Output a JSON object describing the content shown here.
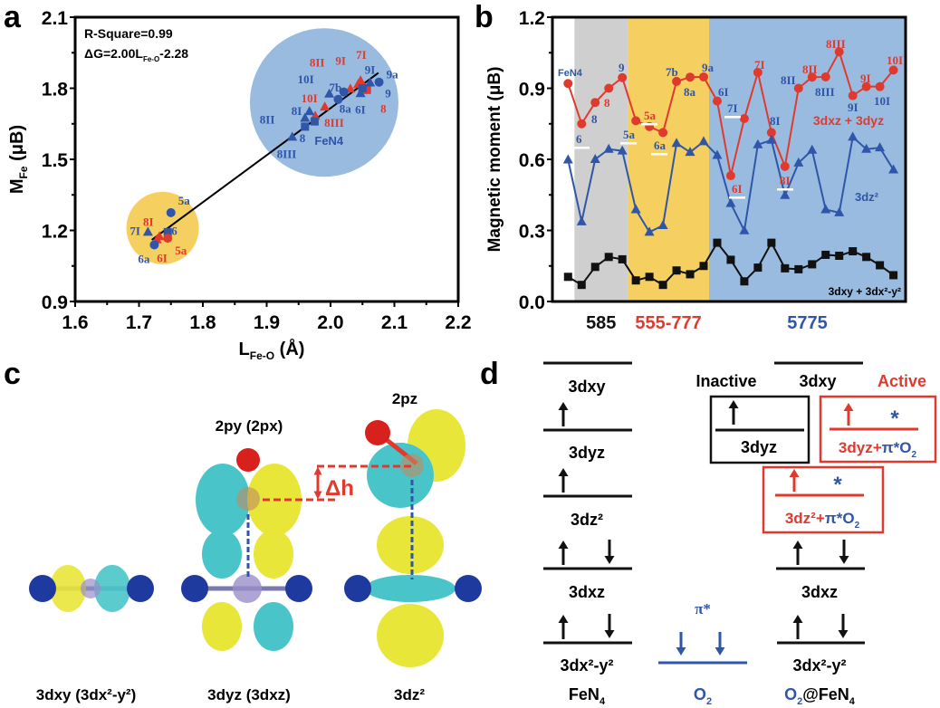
{
  "panels": {
    "a": "a",
    "b": "b",
    "c": "c",
    "d": "d"
  },
  "colors": {
    "red": "#e03a2f",
    "blue": "#2f56a8",
    "black": "#111111",
    "gray_band": "#cfcfcf",
    "yellow_band": "#f5cf5f",
    "blue_band": "#99bbe0",
    "cyan": "#49c5c9",
    "yellow": "#e9e63a"
  },
  "chart_data": [
    {
      "type": "scatter",
      "title": "",
      "xlabel": {
        "main": "L",
        "sub": "Fe-O",
        "unit": " (Å)"
      },
      "ylabel": {
        "main": "M",
        "sub": "Fe",
        "unit": " (μB)"
      },
      "xlim": [
        1.6,
        2.2
      ],
      "ylim": [
        0.9,
        2.1
      ],
      "xticks": [
        "1.6",
        "1.7",
        "1.8",
        "1.9",
        "2.0",
        "2.1",
        "2.2"
      ],
      "yticks": [
        "0.9",
        "1.2",
        "1.5",
        "1.8",
        "2.1"
      ],
      "annotation": {
        "line1": "R-Square=0.99",
        "line2_a": "ΔG=2.00L",
        "line2_sub": "Fe-O",
        "line2_b": "-2.28"
      },
      "fit_line": {
        "x": [
          1.72,
          2.075
        ],
        "y": [
          1.16,
          1.865
        ]
      },
      "clusters": [
        {
          "name": "low",
          "center": [
            1.737,
            1.21
          ],
          "color": "#f5cf5f"
        },
        {
          "name": "high",
          "center": [
            1.99,
            1.74
          ],
          "color": "#99bbe0"
        }
      ],
      "points": [
        {
          "label": "9a",
          "x": 2.076,
          "y": 1.826,
          "marker": "circle",
          "color": "blue"
        },
        {
          "label": "8",
          "x": 2.057,
          "y": 1.793,
          "marker": "square",
          "color": "red"
        },
        {
          "label": "9I",
          "x": 2.062,
          "y": 1.823,
          "marker": "triangle",
          "color": "blue"
        },
        {
          "label": "7I",
          "x": 2.047,
          "y": 1.832,
          "marker": "triangle",
          "color": "red"
        },
        {
          "label": "9I",
          "x": 2.043,
          "y": 1.816,
          "marker": "triangle",
          "color": "red"
        },
        {
          "label": "6I",
          "x": 2.047,
          "y": 1.778,
          "marker": "triangle",
          "color": "blue"
        },
        {
          "label": "9",
          "x": 2.05,
          "y": 1.8,
          "marker": "square",
          "color": "blue"
        },
        {
          "label": "8II",
          "x": 2.031,
          "y": 1.797,
          "marker": "triangle",
          "color": "red"
        },
        {
          "label": "8a",
          "x": 2.021,
          "y": 1.784,
          "marker": "circle",
          "color": "blue"
        },
        {
          "label": "7b",
          "x": 2.012,
          "y": 1.753,
          "marker": "circle",
          "color": "blue"
        },
        {
          "label": "10I",
          "x": 1.998,
          "y": 1.776,
          "marker": "triangle",
          "color": "blue"
        },
        {
          "label": "10I",
          "x": 1.991,
          "y": 1.721,
          "marker": "triangle",
          "color": "red"
        },
        {
          "label": "8III",
          "x": 1.976,
          "y": 1.683,
          "marker": "triangle",
          "color": "red"
        },
        {
          "label": "8I",
          "x": 1.967,
          "y": 1.702,
          "marker": "triangle",
          "color": "blue"
        },
        {
          "label": "8II",
          "x": 1.96,
          "y": 1.674,
          "marker": "triangle",
          "color": "blue"
        },
        {
          "label": "8",
          "x": 1.96,
          "y": 1.638,
          "marker": "square",
          "color": "blue"
        },
        {
          "label": "FeN4",
          "x": 1.975,
          "y": 1.66,
          "marker": "square",
          "color": "blue"
        },
        {
          "label": "8III",
          "x": 1.94,
          "y": 1.594,
          "marker": "triangle",
          "color": "blue"
        },
        {
          "label": "5a",
          "x": 1.75,
          "y": 1.275,
          "marker": "circle",
          "color": "blue"
        },
        {
          "label": "7I",
          "x": 1.714,
          "y": 1.193,
          "marker": "triangle",
          "color": "blue"
        },
        {
          "label": "6",
          "x": 1.745,
          "y": 1.193,
          "marker": "square",
          "color": "blue"
        },
        {
          "label": "8I",
          "x": 1.732,
          "y": 1.174,
          "marker": "triangle",
          "color": "red"
        },
        {
          "label": "5a",
          "x": 1.745,
          "y": 1.167,
          "marker": "circle",
          "color": "red"
        },
        {
          "label": "6I",
          "x": 1.728,
          "y": 1.161,
          "marker": "triangle",
          "color": "red"
        },
        {
          "label": "6a",
          "x": 1.724,
          "y": 1.139,
          "marker": "circle",
          "color": "blue"
        }
      ]
    },
    {
      "type": "line",
      "title": "",
      "xlabel": "",
      "ylabel": "Magnetic moment (μB)",
      "ylim": [
        0,
        1.2
      ],
      "yticks": [
        "0.0",
        "0.3",
        "0.6",
        "0.9",
        "1.2"
      ],
      "x": [
        1,
        2,
        3,
        4,
        5,
        6,
        7,
        8,
        9,
        10,
        11,
        12,
        13,
        14,
        15,
        16,
        17,
        18,
        19,
        20,
        21,
        22,
        23,
        24,
        25
      ],
      "bands": [
        {
          "label": "585",
          "from": 1.47,
          "to": 5.4,
          "color": "#cfcfcf",
          "label_color": "#111111"
        },
        {
          "label": "555-777",
          "from": 5.4,
          "to": 11.4,
          "color": "#f5cf5f",
          "label_color": "#e03a2f"
        },
        {
          "label": "5775",
          "from": 11.4,
          "to": 26.2,
          "color": "#99bbe0",
          "label_color": "#2f56a8"
        }
      ],
      "series": [
        {
          "name": "3dxz + 3dyz",
          "marker": "circle",
          "color": "#e03a2f",
          "values": [
            0.92,
            0.75,
            0.84,
            0.9,
            0.945,
            0.763,
            0.738,
            0.713,
            0.929,
            0.947,
            0.948,
            0.846,
            0.531,
            0.772,
            0.967,
            0.713,
            0.57,
            0.9,
            0.947,
            0.948,
            1.054,
            0.869,
            0.907,
            0.907,
            0.977
          ]
        },
        {
          "name": "3dz²",
          "marker": "triangle",
          "color": "#2f56a8",
          "values": [
            0.598,
            0.337,
            0.6,
            0.643,
            0.636,
            0.388,
            0.293,
            0.321,
            0.668,
            0.63,
            0.675,
            0.617,
            0.414,
            0.299,
            0.662,
            0.681,
            0.448,
            0.585,
            0.639,
            0.388,
            0.375,
            0.694,
            0.643,
            0.649,
            0.556
          ]
        },
        {
          "name": "3dxy + 3dx²-y²",
          "marker": "square",
          "color": "#111111",
          "values": [
            0.104,
            0.07,
            0.146,
            0.188,
            0.178,
            0.089,
            0.104,
            0.07,
            0.131,
            0.115,
            0.15,
            0.248,
            0.176,
            0.085,
            0.143,
            0.248,
            0.14,
            0.136,
            0.157,
            0.197,
            0.193,
            0.212,
            0.188,
            0.153,
            0.111
          ]
        }
      ],
      "point_labels": [
        {
          "text": "FeN4",
          "color": "blue"
        },
        {
          "text": "6",
          "color": "blue"
        },
        {
          "text": "8",
          "color": "blue"
        },
        {
          "text": "9",
          "color": "blue"
        },
        {
          "text": "5a",
          "color": "blue"
        },
        {
          "text": "6a",
          "color": "blue"
        },
        {
          "text": "7b",
          "color": "blue"
        },
        {
          "text": "8a",
          "color": "blue"
        },
        {
          "text": "9a",
          "color": "blue"
        },
        {
          "text": "6I",
          "color": "blue"
        },
        {
          "text": "7I",
          "color": "blue"
        },
        {
          "text": "8I",
          "color": "blue"
        },
        {
          "text": "8II",
          "color": "blue"
        },
        {
          "text": "8III",
          "color": "blue"
        },
        {
          "text": "9I",
          "color": "blue"
        },
        {
          "text": "10I",
          "color": "blue"
        },
        {
          "text": "8",
          "color": "red"
        },
        {
          "text": "5a",
          "color": "red"
        },
        {
          "text": "7I",
          "color": "red"
        },
        {
          "text": "6I",
          "color": "red"
        },
        {
          "text": "8I",
          "color": "red"
        },
        {
          "text": "8II",
          "color": "red"
        },
        {
          "text": "8III",
          "color": "red"
        },
        {
          "text": "9I",
          "color": "red"
        },
        {
          "text": "10I",
          "color": "red"
        }
      ],
      "legend_labels": {
        "red": "3dxz + 3dyz",
        "blue": "3dz²",
        "black": "3dxy + 3dx²-y²"
      }
    }
  ],
  "panel_c": {
    "orbital_labels": {
      "top_mid": "2py (2px)",
      "top_right": "2pz"
    },
    "delta_h": "Δh",
    "bottom_labels": [
      "3dxy (3dx²-y²)",
      "3dyz (3dxz)",
      "3dz²"
    ]
  },
  "panel_d": {
    "fen4_levels": [
      "3dxy",
      "3dyz",
      "3dz²",
      "3dxz",
      "3dx²-y²"
    ],
    "o2_level": "π*",
    "o2fen4_levels": {
      "top": "3dxy",
      "inactive_box": "3dyz",
      "active_box_1": "3dyz+",
      "active_box_1_b": "π*O",
      "active_box_2": "3dz²+",
      "active_box_2_b": "π*O",
      "sub2": "2",
      "xz": "3dxz",
      "x2y2": "3dx²-y²"
    },
    "inactive": "Inactive",
    "active": "Active",
    "star": "*",
    "columns": {
      "fen4": "FeN",
      "fen4_sub": "4",
      "o2": "O",
      "o2_sub": "2",
      "o2fen4_a": "O",
      "o2fen4_sub": "2",
      "o2fen4_b": "@FeN",
      "o2fen4_sub2": "4"
    }
  }
}
